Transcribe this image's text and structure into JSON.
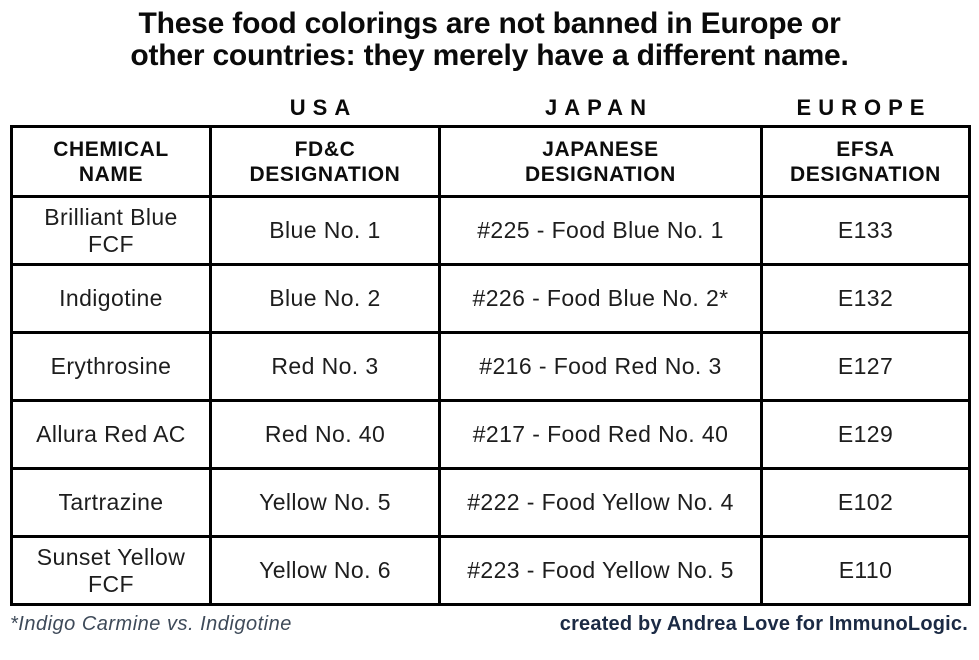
{
  "title": {
    "line1": "These food colorings are not banned in Europe or",
    "line2": "other countries: they merely have a different name."
  },
  "regions": [
    "USA",
    "JAPAN",
    "EUROPE"
  ],
  "columns": [
    {
      "group": "",
      "line1": "CHEMICAL",
      "line2": "NAME"
    },
    {
      "group": "USA",
      "line1": "FD&C",
      "line2": "DESIGNATION"
    },
    {
      "group": "JAPAN",
      "line1": "JAPANESE",
      "line2": "DESIGNATION"
    },
    {
      "group": "EUROPE",
      "line1": "EFSA",
      "line2": "DESIGNATION"
    }
  ],
  "rows": [
    {
      "chemical": "Brilliant Blue FCF",
      "fdc": "Blue No. 1",
      "japanese": "#225 - Food Blue No. 1",
      "efsa": "E133"
    },
    {
      "chemical": "Indigotine",
      "fdc": "Blue No. 2",
      "japanese": "#226 - Food Blue No. 2*",
      "efsa": "E132"
    },
    {
      "chemical": "Erythrosine",
      "fdc": "Red No. 3",
      "japanese": "#216 - Food Red No. 3",
      "efsa": "E127"
    },
    {
      "chemical": "Allura Red AC",
      "fdc": "Red No. 40",
      "japanese": "#217 - Food Red No. 40",
      "efsa": "E129"
    },
    {
      "chemical": "Tartrazine",
      "fdc": "Yellow No. 5",
      "japanese": "#222 - Food Yellow No. 4",
      "efsa": "E102"
    },
    {
      "chemical": "Sunset Yellow FCF",
      "fdc": "Yellow No. 6",
      "japanese": "#223 - Food Yellow No. 5",
      "efsa": "E110"
    }
  ],
  "footnote": "*Indigo Carmine vs. Indigotine",
  "credit": "created by Andrea Love for ImmunoLogic.",
  "colors": {
    "text": "#0a0a0a",
    "border": "#000000",
    "credit_navy": "#1b2a44",
    "footnote_slate": "#3e4a59",
    "background": "#ffffff"
  },
  "chart_data": {
    "type": "table",
    "title": "These food colorings are not banned in Europe or other countries: they merely have a different name.",
    "column_groups": [
      "",
      "USA",
      "JAPAN",
      "EUROPE"
    ],
    "headers": [
      "CHEMICAL NAME",
      "FD&C DESIGNATION",
      "JAPANESE DESIGNATION",
      "EFSA DESIGNATION"
    ],
    "rows": [
      [
        "Brilliant Blue FCF",
        "Blue No. 1",
        "#225 - Food Blue No. 1",
        "E133"
      ],
      [
        "Indigotine",
        "Blue No. 2",
        "#226 - Food Blue No. 2*",
        "E132"
      ],
      [
        "Erythrosine",
        "Red No. 3",
        "#216 - Food Red No. 3",
        "E127"
      ],
      [
        "Allura Red AC",
        "Red No. 40",
        "#217 - Food Red No. 40",
        "E129"
      ],
      [
        "Tartrazine",
        "Yellow No. 5",
        "#222 - Food Yellow No. 4",
        "E102"
      ],
      [
        "Sunset Yellow FCF",
        "Yellow No. 6",
        "#223 - Food Yellow No. 5",
        "E110"
      ]
    ]
  }
}
